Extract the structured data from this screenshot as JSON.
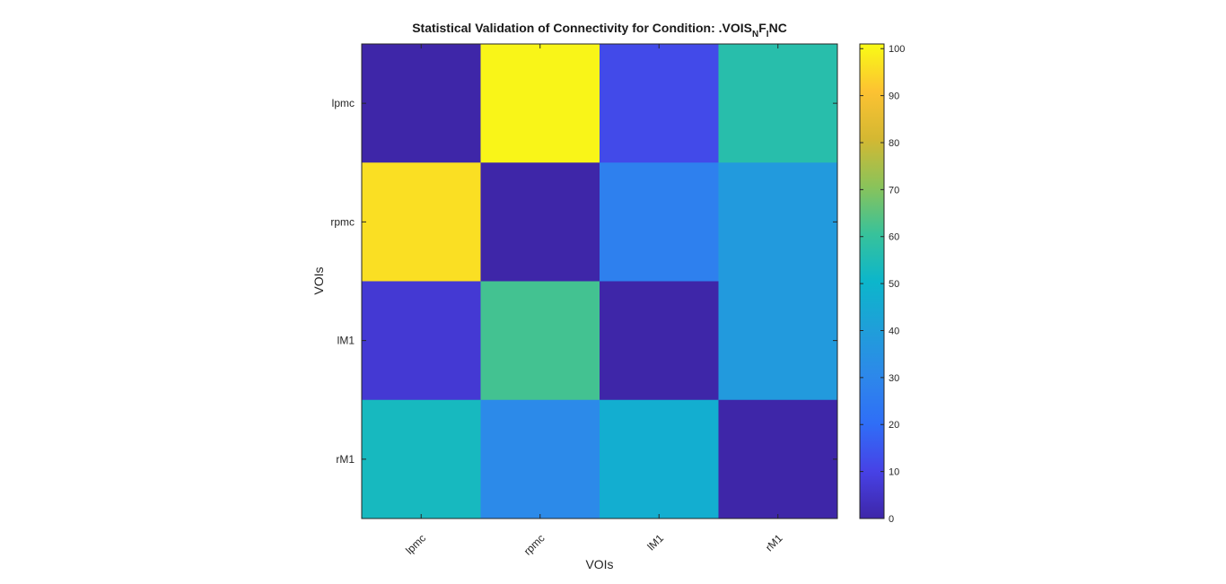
{
  "chart_data": {
    "type": "heatmap",
    "title": {
      "prefix": "Statistical Validation of Connectivity for Condition: .VOIS",
      "sub1": "N",
      "mid": "F",
      "sub2": "I",
      "suffix": "NC"
    },
    "xlabel": "VOIs",
    "ylabel": "VOIs",
    "x_categories": [
      "lpmc",
      "rpmc",
      "lM1",
      "rM1"
    ],
    "y_categories": [
      "lpmc",
      "rpmc",
      "lM1",
      "rM1"
    ],
    "values": [
      [
        0,
        100,
        12,
        57
      ],
      [
        96,
        0,
        27,
        38
      ],
      [
        7,
        62,
        0,
        38
      ],
      [
        53,
        31,
        47,
        0
      ]
    ],
    "colorbar": {
      "colormap": "parula",
      "range": [
        0,
        101
      ],
      "ticks": [
        0,
        10,
        20,
        30,
        40,
        50,
        60,
        70,
        80,
        90,
        100
      ]
    },
    "grid": false
  }
}
